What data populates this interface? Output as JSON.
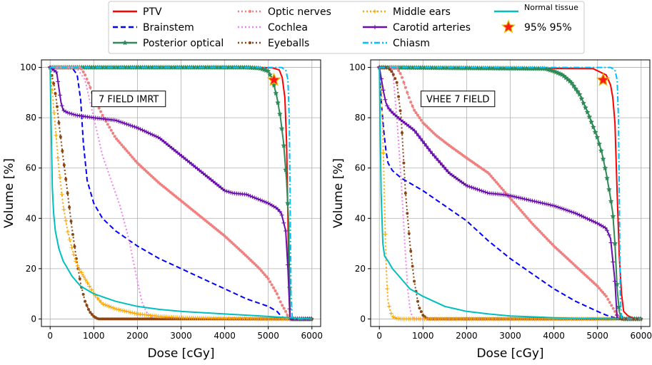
{
  "chart_data": [
    {
      "type": "line",
      "title": "7 FIELD IMRT",
      "xlabel": "Dose [cGy]",
      "ylabel": "Volume [%]",
      "xlim": [
        -200,
        6200
      ],
      "ylim": [
        -3,
        103
      ],
      "xticks": [
        "0",
        "1000",
        "2000",
        "3000",
        "4000",
        "5000",
        "6000"
      ],
      "yticks": [
        "0",
        "20",
        "40",
        "60",
        "80",
        "100"
      ],
      "grid": true,
      "marker_point": {
        "name": "95% 95%",
        "x": 5130,
        "y": 95
      },
      "series": [
        {
          "name": "PTV",
          "x": [
            0,
            4800,
            5100,
            5250,
            5320,
            5380,
            5420,
            5450,
            5470,
            5490,
            5500,
            6000
          ],
          "y": [
            100,
            100,
            99.8,
            99,
            96,
            88,
            70,
            40,
            15,
            3,
            0,
            0
          ]
        },
        {
          "name": "Brainstem",
          "x": [
            0,
            500,
            620,
            700,
            760,
            850,
            1000,
            1200,
            1500,
            2000,
            2500,
            3000,
            3500,
            4000,
            4500,
            5000,
            5200,
            5300,
            5400,
            6000
          ],
          "y": [
            100,
            100,
            97,
            87,
            70,
            55,
            46,
            40,
            35,
            29,
            24,
            20,
            16,
            12,
            8,
            5,
            3,
            1,
            0,
            0
          ]
        },
        {
          "name": "Posterior optical",
          "x": [
            0,
            4500,
            4800,
            5000,
            5100,
            5200,
            5280,
            5350,
            5420,
            5470,
            5500,
            6000
          ],
          "y": [
            100,
            100,
            99.7,
            98.5,
            95,
            88,
            80,
            70,
            55,
            37,
            0,
            0
          ]
        },
        {
          "name": "Optic nerves",
          "x": [
            0,
            700,
            800,
            900,
            1000,
            1200,
            1500,
            2000,
            2500,
            3000,
            3500,
            4000,
            4500,
            4800,
            5000,
            5100,
            5200,
            5300,
            5400,
            5450,
            5500,
            6000
          ],
          "y": [
            100,
            100,
            97,
            93,
            88,
            81,
            72,
            62,
            54,
            47,
            40,
            33,
            25,
            20,
            16,
            13,
            10,
            6,
            3,
            1,
            0,
            0
          ]
        },
        {
          "name": "Cochlea",
          "x": [
            0,
            600,
            800,
            1000,
            1200,
            1400,
            1600,
            1800,
            2000,
            2100,
            2200,
            2300,
            2400,
            6000
          ],
          "y": [
            100,
            100,
            95,
            80,
            65,
            55,
            45,
            32,
            15,
            7,
            3,
            1,
            0,
            0
          ]
        },
        {
          "name": "Eyeballs",
          "x": [
            0,
            100,
            150,
            200,
            300,
            400,
            500,
            600,
            700,
            800,
            900,
            1000,
            1100,
            1200,
            6000
          ],
          "y": [
            100,
            92,
            86,
            78,
            64,
            50,
            36,
            24,
            14,
            7,
            3,
            1,
            0,
            0,
            0
          ]
        },
        {
          "name": "Middle ears",
          "x": [
            0,
            50,
            100,
            150,
            200,
            300,
            400,
            500,
            600,
            800,
            1000,
            1200,
            1500,
            2000,
            2500,
            3000,
            4000,
            5000,
            6000
          ],
          "y": [
            100,
            90,
            80,
            70,
            60,
            45,
            35,
            28,
            22,
            16,
            10,
            6,
            4,
            2,
            1,
            0.5,
            0.2,
            0,
            0
          ]
        },
        {
          "name": "Carotid arteries",
          "x": [
            0,
            150,
            200,
            250,
            300,
            400,
            600,
            800,
            1000,
            1500,
            2000,
            2500,
            3000,
            3500,
            4000,
            4200,
            4500,
            5000,
            5200,
            5300,
            5400,
            5450,
            5500,
            6000
          ],
          "y": [
            100,
            98,
            92,
            86,
            83,
            82,
            81,
            80.5,
            80,
            79,
            76,
            72,
            65,
            58,
            51,
            50,
            49.5,
            46,
            44,
            42,
            35,
            20,
            0,
            0
          ]
        },
        {
          "name": "Chiasm",
          "x": [
            0,
            5300,
            5400,
            5450,
            5480,
            5500,
            5520,
            5550,
            6000
          ],
          "y": [
            100,
            100,
            99,
            95,
            80,
            50,
            10,
            0,
            0
          ]
        },
        {
          "name": "Normal tissue",
          "x": [
            0,
            30,
            50,
            80,
            120,
            200,
            300,
            400,
            500,
            700,
            1000,
            1500,
            2000,
            2500,
            3000,
            4000,
            5000,
            5500,
            6000
          ],
          "y": [
            100,
            70,
            52,
            42,
            35,
            28,
            23,
            20,
            17,
            13,
            10,
            7,
            5,
            3.8,
            3,
            2,
            1,
            0.5,
            0
          ]
        }
      ]
    },
    {
      "type": "line",
      "title": "VHEE 7 FIELD",
      "xlabel": "Dose [cGy]",
      "ylabel": "Volume [%]",
      "xlim": [
        -200,
        6200
      ],
      "ylim": [
        -3,
        103
      ],
      "xticks": [
        "0",
        "1000",
        "2000",
        "3000",
        "4000",
        "5000",
        "6000"
      ],
      "yticks": [
        "0",
        "20",
        "40",
        "60",
        "80",
        "100"
      ],
      "grid": true,
      "marker_point": {
        "name": "95% 95%",
        "x": 5130,
        "y": 95
      },
      "series": [
        {
          "name": "PTV",
          "x": [
            0,
            4900,
            5200,
            5300,
            5350,
            5400,
            5450,
            5500,
            5550,
            5600,
            5700,
            5800,
            5900,
            6000
          ],
          "y": [
            100,
            99.5,
            97,
            93,
            88,
            78,
            50,
            25,
            10,
            3,
            1.2,
            0.5,
            0,
            0
          ]
        },
        {
          "name": "Brainstem",
          "x": [
            0,
            50,
            100,
            150,
            200,
            300,
            500,
            700,
            1000,
            1500,
            2000,
            2500,
            3000,
            3500,
            4000,
            4500,
            5000,
            5200,
            5400,
            5500
          ],
          "y": [
            100,
            85,
            75,
            67,
            62,
            59,
            56,
            54,
            51,
            45,
            39,
            31,
            24,
            18,
            12,
            7,
            3,
            1.5,
            0.5,
            0
          ]
        },
        {
          "name": "Posterior optical",
          "x": [
            0,
            3800,
            4000,
            4200,
            4400,
            4600,
            4800,
            5000,
            5100,
            5200,
            5300,
            5350,
            5400,
            5450,
            5500,
            5550,
            6000
          ],
          "y": [
            100,
            99.5,
            98.5,
            97,
            94,
            89,
            81,
            72,
            66,
            58,
            48,
            42,
            30,
            12,
            3,
            0,
            0
          ]
        },
        {
          "name": "Optic nerves",
          "x": [
            0,
            400,
            500,
            600,
            700,
            800,
            1000,
            1300,
            1600,
            2000,
            2500,
            3000,
            3500,
            4000,
            4500,
            5000,
            5200,
            5300,
            5400,
            5500
          ],
          "y": [
            100,
            100,
            97,
            92,
            87,
            83,
            78,
            73,
            69,
            64,
            58,
            48,
            38,
            29,
            21,
            13,
            9,
            6,
            3,
            0
          ]
        },
        {
          "name": "Cochlea",
          "x": [
            0,
            300,
            350,
            400,
            450,
            500,
            550,
            600,
            650,
            700,
            750,
            800,
            900,
            6000
          ],
          "y": [
            100,
            100,
            90,
            80,
            68,
            55,
            40,
            25,
            12,
            4,
            1,
            0,
            0,
            0
          ]
        },
        {
          "name": "Eyeballs",
          "x": [
            0,
            200,
            300,
            400,
            500,
            550,
            600,
            700,
            800,
            900,
            1000,
            1100,
            1200,
            6000
          ],
          "y": [
            100,
            100,
            98,
            94,
            80,
            65,
            50,
            30,
            15,
            5,
            1.5,
            0,
            0,
            0
          ]
        },
        {
          "name": "Middle ears",
          "x": [
            0,
            50,
            100,
            120,
            140,
            160,
            180,
            200,
            250,
            300,
            400,
            500,
            600,
            5400
          ],
          "y": [
            100,
            90,
            60,
            45,
            30,
            20,
            12,
            7,
            3,
            1,
            0.2,
            0,
            0,
            0
          ]
        },
        {
          "name": "Carotid arteries",
          "x": [
            0,
            50,
            100,
            150,
            200,
            300,
            500,
            800,
            1200,
            1600,
            2000,
            2500,
            2800,
            3000,
            3500,
            4000,
            4500,
            5000,
            5200,
            5300,
            5400,
            5450
          ],
          "y": [
            100,
            95,
            90,
            86,
            84,
            82,
            79,
            75,
            66,
            58,
            53,
            50,
            49.5,
            49,
            47,
            45,
            42,
            38,
            36,
            32,
            15,
            0
          ]
        },
        {
          "name": "Chiasm",
          "x": [
            0,
            5300,
            5400,
            5450,
            5480,
            5500,
            5520,
            5550,
            6000
          ],
          "y": [
            100,
            100,
            99,
            95,
            80,
            50,
            10,
            0,
            0
          ]
        },
        {
          "name": "Normal tissue",
          "x": [
            0,
            40,
            80,
            120,
            200,
            300,
            400,
            500,
            700,
            1000,
            1500,
            2000,
            2500,
            3000,
            4000,
            5000,
            5500
          ],
          "y": [
            100,
            50,
            30,
            25,
            23,
            20,
            18,
            16,
            12,
            9,
            5,
            3,
            2,
            1.2,
            0.5,
            0.1,
            0
          ]
        }
      ]
    }
  ],
  "legend": {
    "entries": [
      {
        "name": "PTV",
        "color": "#ff0000",
        "style": "solid",
        "marker": "none"
      },
      {
        "name": "Brainstem",
        "color": "#0000ff",
        "style": "dashed",
        "marker": "none"
      },
      {
        "name": "Posterior optical",
        "color": "#2e8b57",
        "style": "solid",
        "marker": "x"
      },
      {
        "name": "Optic nerves",
        "color": "#f08080",
        "style": "dotted",
        "marker": "dot"
      },
      {
        "name": "Cochlea",
        "color": "#ee82ee",
        "style": "dotted",
        "marker": "none"
      },
      {
        "name": "Eyeballs",
        "color": "#8b4513",
        "style": "dotted",
        "marker": "dot"
      },
      {
        "name": "Middle ears",
        "color": "#ffa500",
        "style": "dotted",
        "marker": "plus"
      },
      {
        "name": "Carotid arteries",
        "color": "#6a0dad",
        "style": "solid",
        "marker": "plus"
      },
      {
        "name": "Chiasm",
        "color": "#00bfff",
        "style": "dashdot",
        "marker": "none"
      },
      {
        "name": "Normal tissue",
        "color": "#00bfbf",
        "style": "solid",
        "marker": "none"
      },
      {
        "name": "95% 95%",
        "color": "#ff0000",
        "style": "none",
        "marker": "star"
      }
    ]
  }
}
